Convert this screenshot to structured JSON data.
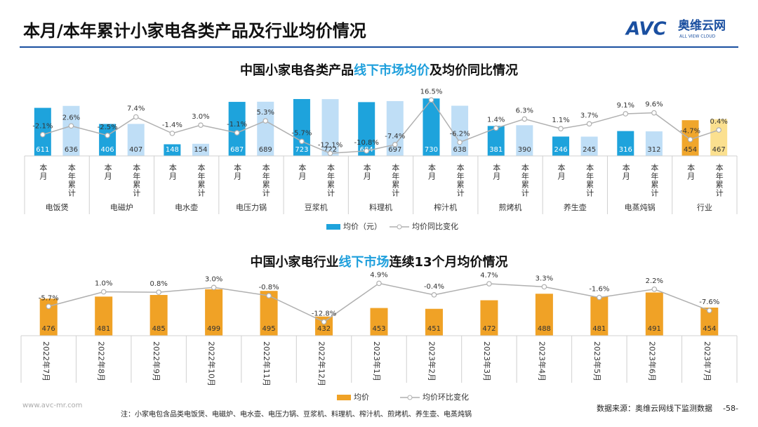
{
  "header": {
    "title": "本月/本年累计小家电各类产品及行业均价情况",
    "logo_mark": "AVC",
    "logo_name": "奥维云网",
    "logo_sub": "ALL VIEW CLOUD"
  },
  "chart_data": [
    {
      "type": "bar-line",
      "title": [
        "中国小家电各类产品",
        "线下市场均价",
        "及均价同比情况"
      ],
      "groups": [
        "电饭煲",
        "电磁炉",
        "电水壶",
        "电压力锅",
        "豆浆机",
        "料理机",
        "榨汁机",
        "煎烤机",
        "养生壶",
        "电蒸炖锅",
        "行业"
      ],
      "categories": [
        "本月",
        "本年累计",
        "本月",
        "本年累计",
        "本月",
        "本年累计",
        "本月",
        "本年累计",
        "本月",
        "本年累计",
        "本月",
        "本年累计",
        "本月",
        "本年累计",
        "本月",
        "本年累计",
        "本月",
        "本年累计",
        "本月",
        "本年累计",
        "本月",
        "本年累计"
      ],
      "ylim": [
        0,
        750
      ],
      "y2lim": [
        -15,
        17
      ],
      "series": [
        {
          "name": "均价（元）",
          "colors": [
            "#1ea3dc",
            "#bfdef6"
          ],
          "highlight": "行业",
          "highlight_colors": [
            "#f0a62c",
            "#fbe08f"
          ],
          "values": [
            611,
            636,
            406,
            407,
            148,
            154,
            687,
            689,
            723,
            722,
            684,
            697,
            730,
            638,
            381,
            390,
            246,
            245,
            316,
            312,
            454,
            467
          ]
        },
        {
          "name": "均价同比变化",
          "axis": "y2",
          "color": "#b0b0b0",
          "values": [
            -2.1,
            2.6,
            -2.5,
            7.4,
            -1.4,
            3.0,
            -1.1,
            5.3,
            -5.7,
            -12.1,
            -10.8,
            -7.4,
            16.5,
            -6.2,
            1.4,
            6.3,
            1.1,
            3.7,
            9.1,
            9.6,
            -4.7,
            0.4
          ],
          "value_labels": [
            "-2.1%",
            "2.6%",
            "-2.5%",
            "7.4%",
            "-1.4%",
            "3.0%",
            "-1.1%",
            "5.3%",
            "-5.7%",
            "-12.1%",
            "-10.8%",
            "-7.4%",
            "16.5%",
            "-6.2%",
            "1.4%",
            "6.3%",
            "1.1%",
            "3.7%",
            "9.1%",
            "9.6%",
            "-4.7%",
            "0.4%"
          ]
        }
      ]
    },
    {
      "type": "bar-line",
      "title": [
        "中国小家电行业",
        "线下市场",
        "连续13个月均价情况"
      ],
      "categories": [
        "2022年7月",
        "2022年8月",
        "2022年9月",
        "2022年10月",
        "2022年11月",
        "2022年12月",
        "2023年1月",
        "2023年2月",
        "2023年3月",
        "2023年4月",
        "2023年5月",
        "2023年6月",
        "2023年7月"
      ],
      "ylim": [
        385,
        510
      ],
      "y2lim": [
        -14,
        6
      ],
      "series": [
        {
          "name": "均价",
          "color": "#f0a226",
          "values": [
            476,
            481,
            485,
            499,
            495,
            432,
            453,
            451,
            472,
            488,
            481,
            491,
            454
          ]
        },
        {
          "name": "均价环比变化",
          "axis": "y2",
          "color": "#b0b0b0",
          "values": [
            -5.7,
            1.0,
            0.8,
            3.0,
            -0.8,
            -12.8,
            4.9,
            -0.4,
            4.7,
            3.3,
            -1.6,
            2.2,
            -7.6
          ],
          "value_labels": [
            "-5.7%",
            "1.0%",
            "0.8%",
            "3.0%",
            "-0.8%",
            "-12.8%",
            "4.9%",
            "-0.4%",
            "4.7%",
            "3.3%",
            "-1.6%",
            "2.2%",
            "-7.6%"
          ]
        }
      ]
    }
  ],
  "footer": {
    "site": "www.avc-mr.com",
    "note": "注：小家电包含品类电饭煲、电磁炉、电水壶、电压力锅、豆浆机、料理机、榨汁机、煎烤机、养生壶、电蒸炖锅",
    "source": "数据来源：奥维云网线下监测数据",
    "page": "-58-"
  }
}
